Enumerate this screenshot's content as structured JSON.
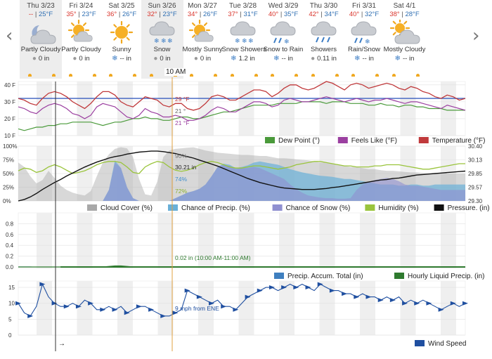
{
  "forecast": {
    "prev_arrow": "‹",
    "next_arrow": "›",
    "current_time_label": "10 AM",
    "days": [
      {
        "date": "Thu 3/23",
        "hi": "--",
        "lo": "25°F",
        "condition": "Partly Cloudy",
        "precip": "0 in",
        "icon": "partly-cloudy-night-icon",
        "precip_icon": "rain-drop-icon",
        "selected": true
      },
      {
        "date": "Fri 3/24",
        "hi": "35°",
        "lo": "23°F",
        "condition": "Partly Cloudy",
        "precip": "0 in",
        "icon": "partly-cloudy-icon",
        "precip_icon": "rain-drop-icon",
        "selected": false
      },
      {
        "date": "Sat 3/25",
        "hi": "36°",
        "lo": "26°F",
        "condition": "Sunny",
        "precip": "-- in",
        "icon": "sun-icon",
        "precip_icon": "snowflake-icon",
        "selected": false
      },
      {
        "date": "Sun 3/26",
        "hi": "32°",
        "lo": "23°F",
        "condition": "Snow",
        "precip": "0 in",
        "icon": "snow-icon",
        "precip_icon": "rain-drop-icon",
        "selected": true
      },
      {
        "date": "Mon 3/27",
        "hi": "34°",
        "lo": "26°F",
        "condition": "Mostly Sunny",
        "precip": "0 in",
        "icon": "mostly-sunny-icon",
        "precip_icon": "rain-drop-icon",
        "selected": false
      },
      {
        "date": "Tue 3/28",
        "hi": "37°",
        "lo": "31°F",
        "condition": "Snow Showers",
        "precip": "1.2 in",
        "icon": "snow-showers-icon",
        "precip_icon": "snowflake-icon",
        "selected": false
      },
      {
        "date": "Wed 3/29",
        "hi": "40°",
        "lo": "35°F",
        "condition": "Snow to Rain",
        "precip": "-- in",
        "icon": "snow-to-rain-icon",
        "precip_icon": "snowflake-icon",
        "selected": false
      },
      {
        "date": "Thu 3/30",
        "hi": "42°",
        "lo": "34°F",
        "condition": "Showers",
        "precip": "0.11 in",
        "icon": "showers-icon",
        "precip_icon": "rain-drop-icon",
        "selected": false
      },
      {
        "date": "Fri 3/31",
        "hi": "40°",
        "lo": "32°F",
        "condition": "Rain/Snow",
        "precip": "-- in",
        "icon": "rain-snow-icon",
        "precip_icon": "snowflake-icon",
        "selected": false
      },
      {
        "date": "Sat 4/1",
        "hi": "38°",
        "lo": "28°F",
        "condition": "Mostly Cloudy",
        "precip": "-- in",
        "icon": "mostly-cloudy-icon",
        "precip_icon": "snowflake-icon",
        "selected": false
      }
    ]
  },
  "colors": {
    "dew_point": "#4a9a3a",
    "feels_like": "#9b3fa0",
    "temperature": "#c0393b",
    "cloud_cover": "#a8a8a8",
    "chance_precip": "#6ab0d8",
    "chance_snow": "#9090d0",
    "humidity": "#9ac43c",
    "pressure": "#111111",
    "precip_accum": "#3f7fbf",
    "hourly_liquid": "#2f7a2f",
    "wind": "#1f4fa0",
    "freezing_line": "#3a5fbf",
    "cursor_line": "#e0a040"
  },
  "chart_data": [
    {
      "type": "line",
      "panel": "temperature",
      "ylim": [
        10,
        42
      ],
      "y_ticks": [
        "40 F",
        "30 F",
        "20 F",
        "10 F"
      ],
      "freezing_line": 32,
      "series": [
        {
          "name": "Temperature (°F)",
          "values": [
            32,
            31,
            29,
            28,
            32,
            35,
            36,
            35,
            33,
            30,
            28,
            26,
            29,
            33,
            36,
            36,
            34,
            30,
            28,
            27,
            30,
            33,
            32,
            31,
            28,
            27,
            29,
            29,
            26,
            25,
            26,
            29,
            33,
            34,
            33,
            31,
            31,
            33,
            35,
            37,
            37,
            36,
            33,
            35,
            38,
            40,
            40,
            38,
            37,
            38,
            40,
            42,
            41,
            39,
            37,
            40,
            41,
            40,
            38,
            39,
            40,
            41,
            40,
            38,
            37,
            39,
            38,
            36,
            35,
            33,
            32,
            34,
            33,
            31,
            32
          ]
        },
        {
          "name": "Feels Like (°F)",
          "values": [
            27,
            26,
            24,
            23,
            26,
            28,
            29,
            28,
            26,
            23,
            22,
            20,
            22,
            27,
            29,
            28,
            27,
            24,
            21,
            20,
            22,
            26,
            24,
            23,
            21,
            21,
            22,
            21,
            19,
            19,
            20,
            22,
            25,
            27,
            26,
            24,
            24,
            26,
            28,
            30,
            30,
            29,
            27,
            28,
            31,
            32,
            31,
            30,
            30,
            31,
            32,
            33,
            32,
            31,
            30,
            31,
            32,
            31,
            30,
            31,
            31,
            32,
            31,
            30,
            29,
            30,
            30,
            29,
            28,
            27,
            26,
            28,
            27,
            26,
            25
          ]
        },
        {
          "name": "Dew Point (°)",
          "values": [
            14,
            13,
            14,
            15,
            15,
            16,
            16,
            17,
            17,
            18,
            18,
            18,
            18,
            17,
            16,
            17,
            18,
            18,
            19,
            20,
            20,
            21,
            20,
            20,
            19,
            19,
            20,
            21,
            21,
            20,
            20,
            21,
            22,
            23,
            24,
            24,
            25,
            26,
            27,
            28,
            28,
            28,
            28,
            29,
            29,
            29,
            29,
            30,
            30,
            30,
            30,
            29,
            30,
            30,
            30,
            29,
            29,
            29,
            28,
            28,
            29,
            28,
            28,
            27,
            28,
            28,
            27,
            27,
            26,
            26,
            26,
            25,
            25,
            25,
            25
          ]
        }
      ],
      "annotations": [
        "29 °F",
        "21 °",
        "21 °F"
      ]
    },
    {
      "type": "area",
      "panel": "sky",
      "ylim_left": [
        0,
        100
      ],
      "ylim_right": [
        29.3,
        30.4
      ],
      "y_ticks_left": [
        "100%",
        "75%",
        "50%",
        "25%",
        "0%"
      ],
      "y_ticks_right": [
        "30.40",
        "30.13",
        "29.85",
        "29.57",
        "29.30"
      ],
      "series": [
        {
          "name": "Cloud Cover (%)",
          "values": [
            70,
            62,
            45,
            32,
            38,
            55,
            42,
            28,
            20,
            15,
            12,
            10,
            18,
            45,
            70,
            85,
            95,
            98,
            96,
            80,
            40,
            12,
            10,
            35,
            80,
            92,
            95,
            96,
            97,
            98,
            95,
            92,
            90,
            88,
            87,
            86,
            85,
            84,
            84,
            83,
            82,
            82,
            80,
            78,
            78,
            77,
            76,
            75,
            74,
            72,
            70,
            70,
            68,
            66,
            64,
            62,
            62,
            60,
            58,
            58,
            56,
            55,
            55,
            54,
            53,
            52,
            52,
            51,
            50,
            50,
            50,
            50,
            50,
            50,
            50
          ]
        },
        {
          "name": "Chance of Precip. (%)",
          "values": [
            0,
            0,
            0,
            0,
            0,
            0,
            0,
            0,
            0,
            0,
            0,
            0,
            0,
            0,
            0,
            20,
            74,
            60,
            25,
            5,
            0,
            0,
            0,
            0,
            0,
            0,
            5,
            10,
            15,
            18,
            22,
            30,
            45,
            62,
            68,
            66,
            60,
            62,
            65,
            70,
            72,
            70,
            68,
            66,
            62,
            58,
            55,
            52,
            50,
            48,
            46,
            45,
            44,
            42,
            40,
            40,
            38,
            36,
            34,
            32,
            30,
            30,
            30,
            28,
            28,
            30,
            30,
            28,
            28,
            30,
            30,
            30,
            30,
            30,
            30
          ]
        },
        {
          "name": "Chance of Snow (%)",
          "values": [
            0,
            0,
            0,
            0,
            0,
            0,
            0,
            0,
            0,
            0,
            0,
            0,
            0,
            0,
            0,
            20,
            70,
            60,
            25,
            5,
            0,
            0,
            0,
            0,
            0,
            0,
            5,
            10,
            15,
            18,
            22,
            30,
            45,
            62,
            66,
            64,
            58,
            60,
            60,
            62,
            60,
            55,
            50,
            45,
            40,
            30,
            22,
            15,
            10,
            8,
            6,
            5,
            5,
            4,
            4,
            5,
            20,
            30,
            35,
            38,
            40,
            42,
            40,
            36,
            30,
            28,
            28,
            26,
            24,
            22,
            20,
            20,
            20,
            20,
            20
          ]
        },
        {
          "name": "Humidity (%)",
          "values": [
            55,
            60,
            58,
            52,
            55,
            62,
            66,
            62,
            56,
            50,
            52,
            55,
            60,
            66,
            70,
            72,
            72,
            70,
            62,
            52,
            50,
            62,
            68,
            72,
            70,
            62,
            56,
            54,
            56,
            60,
            66,
            70,
            72,
            70,
            66,
            62,
            60,
            60,
            62,
            64,
            64,
            62,
            60,
            58,
            60,
            62,
            66,
            68,
            70,
            72,
            72,
            70,
            68,
            66,
            64,
            64,
            62,
            62,
            62,
            64,
            64,
            66,
            66,
            66,
            64,
            62,
            60,
            58,
            58,
            60,
            62,
            64,
            66,
            68,
            68
          ]
        },
        {
          "name": "Pressure. (in)",
          "values": [
            29.3,
            29.33,
            29.38,
            29.45,
            29.53,
            29.6,
            29.67,
            29.73,
            29.8,
            29.86,
            29.92,
            29.98,
            30.03,
            30.08,
            30.12,
            30.16,
            30.19,
            30.21,
            30.24,
            30.26,
            30.28,
            30.29,
            30.3,
            30.3,
            30.29,
            30.27,
            30.25,
            30.22,
            30.19,
            30.16,
            30.12,
            30.08,
            30.04,
            30.0,
            29.95,
            29.9,
            29.85,
            29.8,
            29.75,
            29.71,
            29.67,
            29.64,
            29.61,
            29.58,
            29.56,
            29.55,
            29.54,
            29.53,
            29.53,
            29.53,
            29.54,
            29.55,
            29.57,
            29.58,
            29.6,
            29.62,
            29.64,
            29.66,
            29.68,
            29.7,
            29.72,
            29.73,
            29.75,
            29.76,
            29.78,
            29.8,
            29.82,
            29.83,
            29.84,
            29.85,
            29.86,
            29.87,
            29.88,
            29.89,
            29.9
          ]
        }
      ],
      "annotations": [
        "90%",
        "30.21 in",
        "74%",
        "72%"
      ]
    },
    {
      "type": "area",
      "panel": "precipitation",
      "ylim": [
        0,
        1.0
      ],
      "y_ticks": [
        "0.8",
        "0.6",
        "0.4",
        "0.2",
        "0.0"
      ],
      "series": [
        {
          "name": "Precip. Accum. Total (in)",
          "values": [
            0.01,
            0.01,
            0.01,
            0,
            0,
            0,
            0,
            0,
            0,
            0,
            0,
            0,
            0,
            0,
            0,
            0.01,
            0.02,
            0.02,
            0.01,
            0,
            0,
            0,
            0,
            0,
            0,
            0,
            0,
            0,
            0,
            0,
            0,
            0,
            0,
            0,
            0,
            0,
            0,
            0,
            0,
            0,
            0,
            0,
            0,
            0,
            0,
            0,
            0,
            0,
            0,
            0,
            0,
            0,
            0,
            0,
            0,
            0,
            0,
            0,
            0,
            0,
            0,
            0,
            0,
            0,
            0,
            0,
            0,
            0,
            0,
            0,
            0,
            0,
            0,
            0,
            0
          ]
        },
        {
          "name": "Hourly Liquid Precip. (in)",
          "values": [
            0,
            0,
            0,
            0,
            0,
            0,
            0,
            0,
            0,
            0,
            0,
            0,
            0,
            0,
            0,
            0.01,
            0.02,
            0.02,
            0.01,
            0,
            0,
            0,
            0,
            0,
            0,
            0,
            0,
            0,
            0,
            0,
            0,
            0,
            0,
            0,
            0,
            0,
            0,
            0,
            0,
            0,
            0,
            0,
            0,
            0,
            0,
            0,
            0,
            0,
            0,
            0,
            0,
            0,
            0,
            0,
            0,
            0,
            0,
            0,
            0,
            0,
            0,
            0,
            0,
            0,
            0,
            0,
            0,
            0,
            0,
            0,
            0,
            0,
            0,
            0,
            0
          ]
        }
      ],
      "annotations": [
        "0.02 in (10:00 AM-11:00 AM)"
      ]
    },
    {
      "type": "line",
      "panel": "wind",
      "ylim": [
        0,
        17
      ],
      "y_ticks": [
        "15",
        "10",
        "5",
        "0"
      ],
      "series": [
        {
          "name": "Wind Speed",
          "values": [
            10,
            7,
            6,
            9,
            16,
            12,
            10,
            9,
            9,
            10,
            9,
            11,
            10,
            8,
            8,
            9,
            8,
            9,
            7,
            8,
            9,
            9,
            8,
            7,
            6,
            6,
            7,
            8,
            14,
            13,
            12,
            11,
            10,
            11,
            9,
            9,
            8,
            10,
            12,
            13,
            14,
            15,
            15,
            14,
            15,
            16,
            15,
            16,
            15,
            14,
            16,
            15,
            14,
            14,
            13,
            13,
            12,
            13,
            12,
            12,
            11,
            12,
            11,
            12,
            10,
            11,
            10,
            11,
            10,
            9,
            8,
            9,
            10,
            9,
            10
          ]
        }
      ],
      "annotations": [
        "9 mph from ENE"
      ]
    }
  ],
  "legend": {
    "temp": [
      "Dew Point (°)",
      "Feels Like (°F)",
      "Temperature (°F)"
    ],
    "sky": [
      "Cloud Cover (%)",
      "Chance of Precip. (%)",
      "Chance of Snow (%)",
      "Humidity (%)",
      "Pressure. (in)"
    ],
    "precip": [
      "Precip. Accum. Total (in)",
      "Hourly Liquid Precip. (in)"
    ],
    "wind": [
      "Wind Speed"
    ]
  },
  "timeline_arrow": "→"
}
